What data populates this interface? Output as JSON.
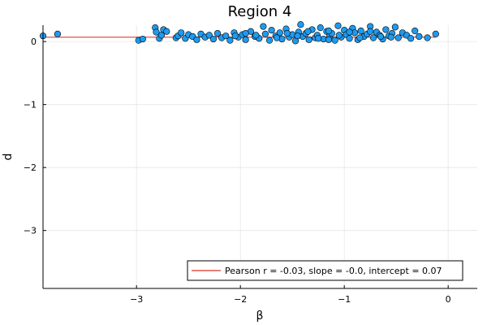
{
  "chart_data": {
    "type": "scatter",
    "title": "Region 4",
    "xlabel": "β",
    "ylabel": "d",
    "xlim": [
      -3.9,
      0.28
    ],
    "ylim": [
      -3.92,
      0.26
    ],
    "xticks": [
      -3,
      -2,
      -1,
      0
    ],
    "yticks": [
      0,
      -1,
      -2,
      -3
    ],
    "grid": true,
    "legend_position": "bottom-right",
    "colors": {
      "points": "#1e9bf0",
      "fit_line": "#e2534d"
    },
    "fit": {
      "label": "Pearson r = -0.03, slope = -0.0, intercept = 0.07",
      "slope": 0.0,
      "intercept": 0.07
    },
    "points": [
      [
        -3.9,
        0.09
      ],
      [
        -3.76,
        0.12
      ],
      [
        -2.98,
        0.02
      ],
      [
        -2.94,
        0.04
      ],
      [
        -2.82,
        0.22
      ],
      [
        -2.81,
        0.15
      ],
      [
        -2.78,
        0.05
      ],
      [
        -2.76,
        0.1
      ],
      [
        -2.74,
        0.19
      ],
      [
        -2.71,
        0.16
      ],
      [
        -2.62,
        0.06
      ],
      [
        -2.6,
        0.09
      ],
      [
        -2.57,
        0.14
      ],
      [
        -2.53,
        0.05
      ],
      [
        -2.5,
        0.11
      ],
      [
        -2.46,
        0.08
      ],
      [
        -2.42,
        0.03
      ],
      [
        -2.38,
        0.12
      ],
      [
        -2.34,
        0.07
      ],
      [
        -2.3,
        0.1
      ],
      [
        -2.26,
        0.04
      ],
      [
        -2.22,
        0.13
      ],
      [
        -2.18,
        0.06
      ],
      [
        -2.14,
        0.09
      ],
      [
        -2.1,
        0.02
      ],
      [
        -2.06,
        0.14
      ],
      [
        -2.02,
        0.07
      ],
      [
        -1.98,
        0.11
      ],
      [
        -1.95,
        0.03
      ],
      [
        -1.9,
        0.16
      ],
      [
        -1.86,
        0.08
      ],
      [
        -1.82,
        0.05
      ],
      [
        -1.78,
        0.24
      ],
      [
        -1.76,
        0.12
      ],
      [
        -1.72,
        0.02
      ],
      [
        -1.7,
        0.18
      ],
      [
        -1.66,
        0.09
      ],
      [
        -1.62,
        0.14
      ],
      [
        -1.6,
        0.04
      ],
      [
        -1.56,
        0.2
      ],
      [
        -1.53,
        0.07
      ],
      [
        -1.5,
        0.11
      ],
      [
        -1.47,
        0.01
      ],
      [
        -1.44,
        0.15
      ],
      [
        -1.42,
        0.27
      ],
      [
        -1.4,
        0.08
      ],
      [
        -1.37,
        0.13
      ],
      [
        -1.34,
        0.03
      ],
      [
        -1.31,
        0.19
      ],
      [
        -1.28,
        0.06
      ],
      [
        -1.26,
        0.1
      ],
      [
        -1.23,
        0.22
      ],
      [
        -1.2,
        0.04
      ],
      [
        -1.17,
        0.16
      ],
      [
        -1.14,
        0.09
      ],
      [
        -1.12,
        0.13
      ],
      [
        -1.09,
        0.02
      ],
      [
        -1.06,
        0.25
      ],
      [
        -1.03,
        0.07
      ],
      [
        -1.0,
        0.18
      ],
      [
        -0.98,
        0.11
      ],
      [
        -0.95,
        0.05
      ],
      [
        -0.92,
        0.21
      ],
      [
        -0.9,
        0.14
      ],
      [
        -0.87,
        0.03
      ],
      [
        -0.84,
        0.17
      ],
      [
        -0.81,
        0.08
      ],
      [
        -0.78,
        0.12
      ],
      [
        -0.75,
        0.24
      ],
      [
        -0.72,
        0.06
      ],
      [
        -0.69,
        0.15
      ],
      [
        -0.66,
        0.1
      ],
      [
        -0.63,
        0.04
      ],
      [
        -0.6,
        0.19
      ],
      [
        -0.57,
        0.09
      ],
      [
        -0.54,
        0.13
      ],
      [
        -0.51,
        0.23
      ],
      [
        -0.48,
        0.06
      ],
      [
        -0.44,
        0.14
      ],
      [
        -0.4,
        0.1
      ],
      [
        -0.36,
        0.05
      ],
      [
        -0.32,
        0.17
      ],
      [
        -0.28,
        0.08
      ],
      [
        -0.2,
        0.06
      ],
      [
        -0.12,
        0.12
      ],
      [
        -1.85,
        0.1
      ],
      [
        -1.65,
        0.06
      ],
      [
        -1.45,
        0.09
      ],
      [
        -1.25,
        0.05
      ],
      [
        -1.05,
        0.1
      ],
      [
        -0.85,
        0.06
      ],
      [
        -0.65,
        0.08
      ],
      [
        -1.55,
        0.13
      ],
      [
        -1.35,
        0.16
      ],
      [
        -1.15,
        0.17
      ],
      [
        -0.95,
        0.15
      ],
      [
        -0.75,
        0.16
      ],
      [
        -2.05,
        0.09
      ],
      [
        -1.95,
        0.13
      ],
      [
        -1.15,
        0.03
      ],
      [
        -0.55,
        0.07
      ]
    ]
  }
}
